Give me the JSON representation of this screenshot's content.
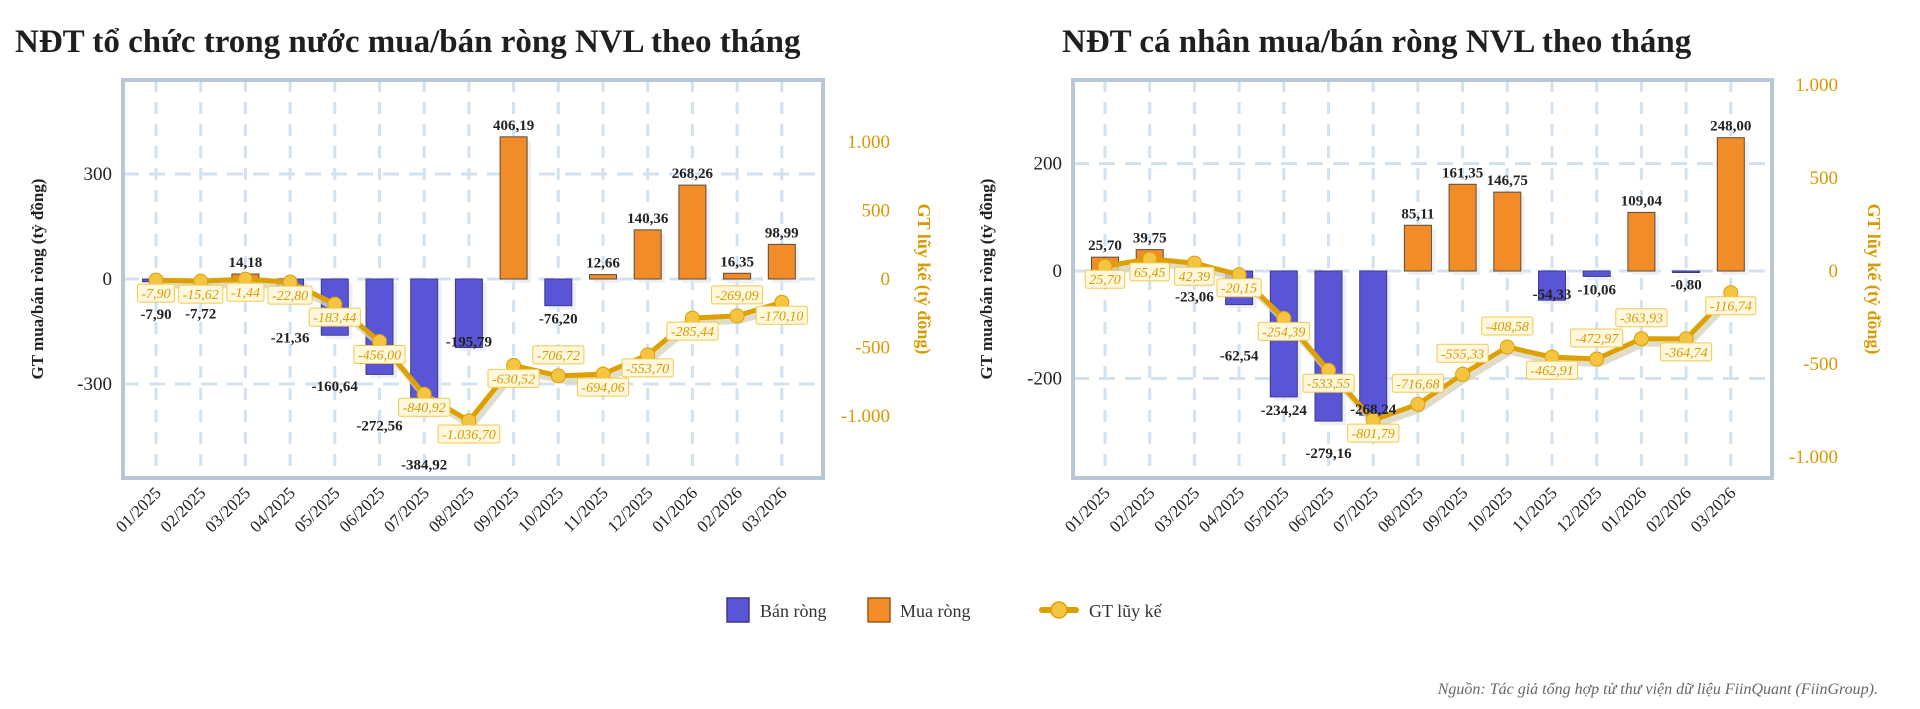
{
  "legend": {
    "sell": "Bán ròng",
    "buy": "Mua ròng",
    "cumulative": "GT lũy kế"
  },
  "source": "Nguồn: Tác giả tổng hợp từ thư viện dữ liệu FiinQuant (FiinGroup).",
  "colors": {
    "sell": "#5a55d6",
    "buy": "#f28c28",
    "cumulative_line": "#dca000",
    "cumulative_marker": "#f5c542",
    "cumulative_label_bg": "#fff8dc",
    "grid": "#d3e2f1",
    "frame": "#b8c6d6"
  },
  "chart_data": [
    {
      "type": "bar+line",
      "title": "NĐT tổ chức trong nước mua/bán ròng NVL theo tháng",
      "ylabel": "GT mua/bán ròng (tỷ đồng)",
      "y2label": "GT lũy kế (tỷ đồng)",
      "categories": [
        "01/2025",
        "02/2025",
        "03/2025",
        "04/2025",
        "05/2025",
        "06/2025",
        "07/2025",
        "08/2025",
        "09/2025",
        "10/2025",
        "11/2025",
        "12/2025",
        "01/2026",
        "02/2026",
        "03/2026"
      ],
      "yticks": [
        300,
        0,
        -300
      ],
      "y2ticks": [
        1000,
        500,
        0,
        -500,
        -1000
      ],
      "ylim": [
        -570,
        570
      ],
      "y2lim": [
        -1450,
        1450
      ],
      "grid": true,
      "legend": "bottom",
      "series": [
        {
          "name": "Bán ròng / Mua ròng",
          "kind": "bar",
          "axis": "left",
          "values": [
            -7.9,
            -7.72,
            14.18,
            -21.36,
            -160.64,
            -272.56,
            -384.92,
            -195.79,
            406.19,
            -76.2,
            12.66,
            140.36,
            268.26,
            16.35,
            98.99
          ]
        },
        {
          "name": "GT lũy kế",
          "kind": "line",
          "axis": "right",
          "values": [
            -7.9,
            -15.62,
            -1.44,
            -22.8,
            -183.44,
            -456.0,
            -840.92,
            -1036.7,
            -630.52,
            -706.72,
            -694.06,
            -553.7,
            -285.44,
            -269.09,
            -170.1
          ]
        }
      ]
    },
    {
      "type": "bar+line",
      "title": "NĐT cá nhân mua/bán ròng NVL theo tháng",
      "ylabel": "GT mua/bán ròng (tỷ đồng)",
      "y2label": "GT lũy kế (tỷ đồng)",
      "categories": [
        "01/2025",
        "02/2025",
        "03/2025",
        "04/2025",
        "05/2025",
        "06/2025",
        "07/2025",
        "08/2025",
        "09/2025",
        "10/2025",
        "11/2025",
        "12/2025",
        "01/2026",
        "02/2026",
        "03/2026"
      ],
      "yticks": [
        200,
        0,
        -200
      ],
      "y2ticks": [
        1000,
        500,
        0,
        -500,
        -1000
      ],
      "ylim": [
        -385,
        355
      ],
      "y2lim": [
        -1100,
        1016
      ],
      "grid": true,
      "legend": "bottom",
      "series": [
        {
          "name": "Bán ròng / Mua ròng",
          "kind": "bar",
          "axis": "left",
          "values": [
            25.7,
            39.75,
            -23.06,
            -62.54,
            -234.24,
            -279.16,
            -268.24,
            85.11,
            161.35,
            146.75,
            -54.33,
            -10.06,
            109.04,
            -0.8,
            248.0
          ]
        },
        {
          "name": "GT lũy kế",
          "kind": "line",
          "axis": "right",
          "values": [
            25.7,
            65.45,
            42.39,
            -20.15,
            -254.39,
            -533.55,
            -801.79,
            -716.68,
            -555.33,
            -408.58,
            -462.91,
            -472.97,
            -363.93,
            -364.74,
            -116.74
          ]
        }
      ]
    }
  ]
}
